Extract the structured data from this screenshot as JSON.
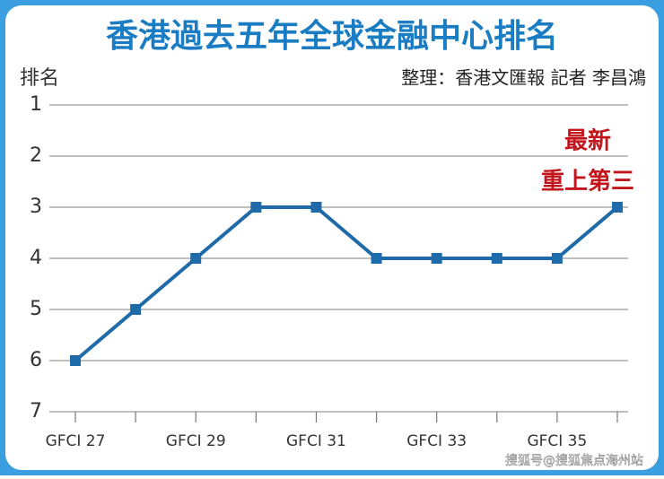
{
  "chart_data": {
    "type": "line",
    "title": "香港過去五年全球金融中心排名",
    "y_label": "排名",
    "source": "整理：香港文匯報 記者 李昌鴻",
    "annotation": [
      "最新",
      "重上第三"
    ],
    "watermark": "搜狐号@搜狐焦点海州站",
    "categories": [
      "GFCI 27",
      null,
      "GFCI 29",
      null,
      "GFCI 31",
      null,
      "GFCI 33",
      null,
      "GFCI 35",
      null
    ],
    "values": [
      6,
      5,
      4,
      3,
      3,
      4,
      4,
      4,
      4,
      3
    ],
    "color": "#1f6aa8",
    "ylim": [
      1,
      7
    ],
    "yticks": [
      1,
      2,
      3,
      4,
      5,
      6,
      7
    ],
    "inverted": true,
    "grid": true
  }
}
